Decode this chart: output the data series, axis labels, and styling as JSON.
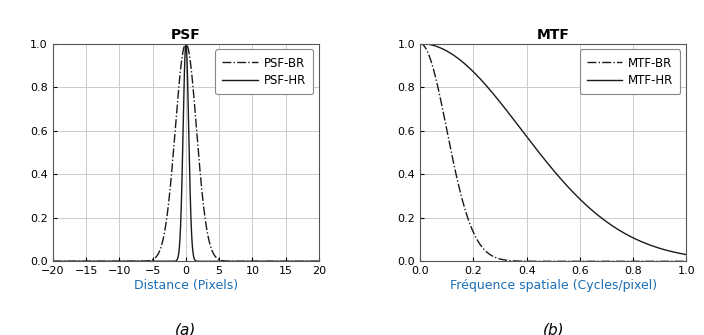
{
  "psf_title": "PSF",
  "mtf_title": "MTF",
  "psf_xlabel": "Distance (Pixels)",
  "mtf_xlabel": "Fréquence spatiale (Cycles/pixel)",
  "psf_xlim": [
    -20,
    20
  ],
  "psf_ylim": [
    0,
    1
  ],
  "mtf_xlim": [
    0,
    1
  ],
  "mtf_ylim": [
    0,
    1
  ],
  "psf_xticks": [
    -20,
    -15,
    -10,
    -5,
    0,
    5,
    10,
    15,
    20
  ],
  "psf_yticks": [
    0,
    0.2,
    0.4,
    0.6,
    0.8,
    1.0
  ],
  "mtf_xticks": [
    0,
    0.2,
    0.4,
    0.6,
    0.8,
    1.0
  ],
  "mtf_yticks": [
    0,
    0.2,
    0.4,
    0.6,
    0.8,
    1.0
  ],
  "psf_legend": [
    "PSF-BR",
    "PSF-HR"
  ],
  "mtf_legend": [
    "MTF-BR",
    "MTF-HR"
  ],
  "label_a": "(a)",
  "label_b": "(b)",
  "psf_hr_sigma": 0.42,
  "psf_br_sigma": 1.6,
  "mtf_hr_sigma": 0.42,
  "mtf_br_sigma": 1.6,
  "line_color": "#1a1a1a",
  "background_color": "#ffffff",
  "grid_color": "#cccccc",
  "xlabel_color": "#1a6eb5",
  "title_fontsize": 10,
  "label_fontsize": 9,
  "tick_fontsize": 8,
  "legend_fontsize": 8.5,
  "caption_fontsize": 11
}
